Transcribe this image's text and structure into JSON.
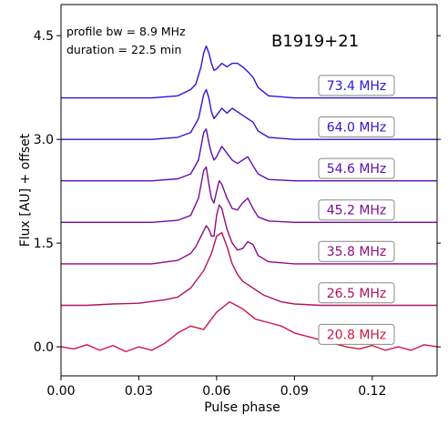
{
  "chart_data": {
    "type": "line",
    "title": "B1919+21",
    "annotations": [
      "profile bw = 8.9 MHz",
      "duration = 22.5 min"
    ],
    "xlabel": "Pulse phase",
    "ylabel": "Flux [AU] + offset",
    "xlim": [
      0.0,
      0.145
    ],
    "ylim": [
      -0.42,
      4.95
    ],
    "x_ticks": [
      0.0,
      0.03,
      0.06,
      0.09,
      0.12
    ],
    "x_tick_labels": [
      "0.00",
      "0.03",
      "0.06",
      "0.09",
      "0.12"
    ],
    "y_ticks": [
      0.0,
      1.5,
      3.0,
      4.5
    ],
    "y_tick_labels": [
      "0.0",
      "1.5",
      "3.0",
      "4.5"
    ],
    "grid": false,
    "series": [
      {
        "name": "73.4 MHz",
        "color": "#2a16d6",
        "offset": 3.6,
        "x": [
          0.0,
          0.035,
          0.045,
          0.05,
          0.052,
          0.054,
          0.055,
          0.056,
          0.057,
          0.058,
          0.059,
          0.06,
          0.062,
          0.064,
          0.066,
          0.068,
          0.07,
          0.072,
          0.074,
          0.076,
          0.08,
          0.09,
          0.12,
          0.145
        ],
        "y": [
          0.0,
          0.0,
          0.03,
          0.12,
          0.2,
          0.45,
          0.65,
          0.75,
          0.65,
          0.5,
          0.4,
          0.42,
          0.5,
          0.45,
          0.5,
          0.5,
          0.45,
          0.38,
          0.3,
          0.15,
          0.03,
          0.0,
          0.0,
          0.0
        ]
      },
      {
        "name": "64.0 MHz",
        "color": "#3a12c9",
        "offset": 3.0,
        "x": [
          0.0,
          0.035,
          0.045,
          0.05,
          0.053,
          0.055,
          0.056,
          0.057,
          0.058,
          0.059,
          0.06,
          0.062,
          0.064,
          0.066,
          0.068,
          0.07,
          0.072,
          0.074,
          0.076,
          0.08,
          0.09,
          0.12,
          0.145
        ],
        "y": [
          0.0,
          0.0,
          0.03,
          0.1,
          0.3,
          0.65,
          0.72,
          0.6,
          0.4,
          0.3,
          0.35,
          0.45,
          0.38,
          0.45,
          0.4,
          0.35,
          0.3,
          0.25,
          0.12,
          0.03,
          0.0,
          0.0,
          0.0
        ]
      },
      {
        "name": "54.6 MHz",
        "color": "#5a0fb3",
        "offset": 2.4,
        "x": [
          0.0,
          0.035,
          0.045,
          0.05,
          0.053,
          0.055,
          0.056,
          0.057,
          0.058,
          0.059,
          0.06,
          0.062,
          0.064,
          0.066,
          0.068,
          0.07,
          0.072,
          0.074,
          0.076,
          0.08,
          0.09,
          0.12,
          0.145
        ],
        "y": [
          0.0,
          0.0,
          0.03,
          0.1,
          0.3,
          0.7,
          0.75,
          0.55,
          0.4,
          0.3,
          0.35,
          0.5,
          0.4,
          0.3,
          0.25,
          0.3,
          0.35,
          0.22,
          0.1,
          0.02,
          0.0,
          0.0,
          0.0
        ]
      },
      {
        "name": "45.2 MHz",
        "color": "#7a0d99",
        "offset": 1.8,
        "x": [
          0.0,
          0.035,
          0.045,
          0.05,
          0.053,
          0.055,
          0.056,
          0.057,
          0.058,
          0.059,
          0.06,
          0.061,
          0.062,
          0.064,
          0.066,
          0.068,
          0.07,
          0.072,
          0.074,
          0.076,
          0.08,
          0.09,
          0.12,
          0.145
        ],
        "y": [
          0.0,
          0.0,
          0.03,
          0.1,
          0.35,
          0.75,
          0.8,
          0.55,
          0.35,
          0.28,
          0.45,
          0.6,
          0.55,
          0.35,
          0.2,
          0.18,
          0.28,
          0.35,
          0.2,
          0.08,
          0.02,
          0.0,
          0.0,
          0.0
        ]
      },
      {
        "name": "35.8 MHz",
        "color": "#920c80",
        "offset": 1.2,
        "x": [
          0.0,
          0.035,
          0.045,
          0.05,
          0.052,
          0.054,
          0.056,
          0.057,
          0.058,
          0.059,
          0.06,
          0.061,
          0.062,
          0.063,
          0.064,
          0.066,
          0.068,
          0.07,
          0.072,
          0.074,
          0.076,
          0.08,
          0.09,
          0.12,
          0.145
        ],
        "y": [
          0.0,
          0.0,
          0.05,
          0.15,
          0.25,
          0.4,
          0.55,
          0.5,
          0.4,
          0.4,
          0.7,
          0.85,
          0.8,
          0.65,
          0.5,
          0.3,
          0.2,
          0.22,
          0.32,
          0.28,
          0.12,
          0.03,
          0.0,
          0.0,
          0.0
        ]
      },
      {
        "name": "26.5 MHz",
        "color": "#b0125e",
        "offset": 0.6,
        "x": [
          0.0,
          0.01,
          0.02,
          0.03,
          0.04,
          0.045,
          0.05,
          0.055,
          0.058,
          0.06,
          0.062,
          0.064,
          0.066,
          0.068,
          0.07,
          0.072,
          0.074,
          0.078,
          0.085,
          0.09,
          0.1,
          0.12,
          0.145
        ],
        "y": [
          0.0,
          0.0,
          0.02,
          0.03,
          0.08,
          0.12,
          0.25,
          0.5,
          0.75,
          1.0,
          1.05,
          0.85,
          0.6,
          0.45,
          0.35,
          0.3,
          0.25,
          0.15,
          0.05,
          0.02,
          0.0,
          0.0,
          0.0
        ]
      },
      {
        "name": "20.8 MHz",
        "color": "#cc1845",
        "offset": 0.0,
        "x": [
          0.0,
          0.005,
          0.01,
          0.015,
          0.02,
          0.025,
          0.03,
          0.035,
          0.04,
          0.045,
          0.05,
          0.055,
          0.06,
          0.065,
          0.07,
          0.075,
          0.08,
          0.085,
          0.09,
          0.095,
          0.1,
          0.105,
          0.11,
          0.115,
          0.12,
          0.125,
          0.13,
          0.135,
          0.14,
          0.145
        ],
        "y": [
          0.0,
          -0.03,
          0.03,
          -0.05,
          0.02,
          -0.07,
          0.0,
          -0.05,
          0.05,
          0.2,
          0.3,
          0.25,
          0.5,
          0.65,
          0.55,
          0.4,
          0.35,
          0.3,
          0.2,
          0.15,
          0.1,
          0.05,
          0.0,
          -0.03,
          0.02,
          -0.05,
          0.0,
          -0.05,
          0.03,
          0.0
        ]
      }
    ]
  }
}
